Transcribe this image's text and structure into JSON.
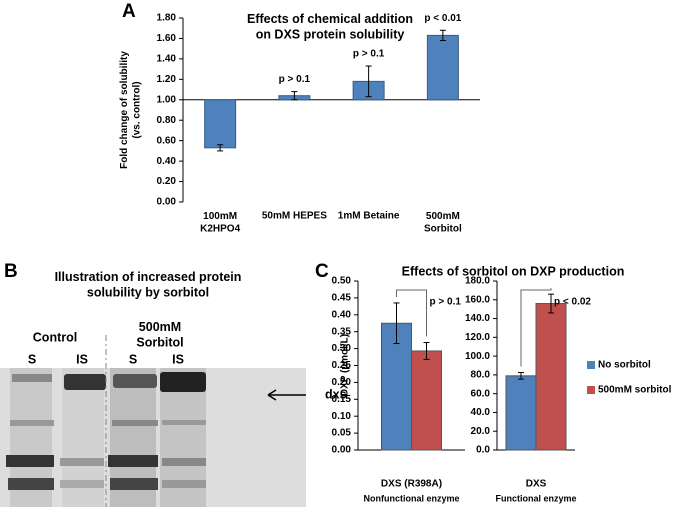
{
  "panels": [
    "A",
    "B",
    "C"
  ],
  "gel": {
    "title": "Illustration of increased protein\nsolubility by sorbitol",
    "groups": [
      "Control",
      "500mM\nSorbitol"
    ],
    "lanes": [
      "S",
      "IS",
      "S",
      "IS"
    ],
    "band_label": "dxs"
  },
  "chart_data": [
    {
      "type": "bar",
      "title": "Effects of chemical addition\non DXS protein solubility",
      "ylabel": "Fold change of solubility\n(vs. control)",
      "categories": [
        "100mM\nK2HPO4",
        "50mM HEPES",
        "1mM Betaine",
        "500mM\nSorbitol"
      ],
      "values": [
        0.53,
        1.04,
        1.18,
        1.63
      ],
      "errors": [
        0.03,
        0.04,
        0.15,
        0.05
      ],
      "bar_notes": [
        null,
        "p > 0.1",
        "p > 0.1",
        "p < 0.01"
      ],
      "baseline": 1,
      "color": "#4f81bd",
      "ylim": [
        0,
        1.8
      ],
      "yticks": [
        {
          "value": 0,
          "label": "0.00"
        },
        {
          "value": 0.2,
          "label": "0.20"
        },
        {
          "value": 0.4,
          "label": "0.40"
        },
        {
          "value": 0.6,
          "label": "0.60"
        },
        {
          "value": 0.8,
          "label": "0.80"
        },
        {
          "value": 1,
          "label": "1.00"
        },
        {
          "value": 1.2,
          "label": "1.20"
        },
        {
          "value": 1.4,
          "label": "1.40"
        },
        {
          "value": 1.6,
          "label": "1.60"
        },
        {
          "value": 1.8,
          "label": "1.80"
        }
      ]
    },
    {
      "type": "bar",
      "title": "Effects of sorbitol on DXP production",
      "ylabel": "DXP (µmol/L)",
      "categories": [
        "DXS (R398A)"
      ],
      "category_notes": [
        "Nonfunctional enzyme"
      ],
      "series": [
        {
          "color": "#4f81bd",
          "values": [
            0.375
          ],
          "errors": [
            0.06
          ]
        },
        {
          "color": "#c0504d",
          "values": [
            0.293
          ],
          "errors": [
            0.025
          ]
        }
      ],
      "annotation": "p > 0.1",
      "ylim": [
        0,
        0.5
      ],
      "yticks": [
        {
          "value": 0,
          "label": "0.00"
        },
        {
          "value": 0.05,
          "label": "0.05"
        },
        {
          "value": 0.1,
          "label": "0.10"
        },
        {
          "value": 0.15,
          "label": "0.15"
        },
        {
          "value": 0.2,
          "label": "0.20"
        },
        {
          "value": 0.25,
          "label": "0.25"
        },
        {
          "value": 0.3,
          "label": "0.30"
        },
        {
          "value": 0.35,
          "label": "0.35"
        },
        {
          "value": 0.4,
          "label": "0.40"
        },
        {
          "value": 0.45,
          "label": "0.45"
        },
        {
          "value": 0.5,
          "label": "0.50"
        }
      ]
    },
    {
      "type": "bar",
      "categories": [
        "DXS"
      ],
      "category_notes": [
        "Functional enzyme"
      ],
      "series": [
        {
          "name": "No sorbitol",
          "color": "#4f81bd",
          "values": [
            79
          ],
          "errors": [
            3.5
          ]
        },
        {
          "name": "500mM sorbitol",
          "color": "#c0504d",
          "values": [
            156
          ],
          "errors": [
            10
          ]
        }
      ],
      "annotation": "p < 0.02",
      "legend": "right",
      "ylim": [
        0,
        180
      ],
      "yticks": [
        {
          "value": 0,
          "label": "0.0"
        },
        {
          "value": 20,
          "label": "20.0"
        },
        {
          "value": 40,
          "label": "40.0"
        },
        {
          "value": 60,
          "label": "60.0"
        },
        {
          "value": 80,
          "label": "80.0"
        },
        {
          "value": 100,
          "label": "100.0"
        },
        {
          "value": 120,
          "label": "120.0"
        },
        {
          "value": 140,
          "label": "140.0"
        },
        {
          "value": 160,
          "label": "160.0"
        },
        {
          "value": 180,
          "label": "180.0"
        }
      ]
    }
  ]
}
